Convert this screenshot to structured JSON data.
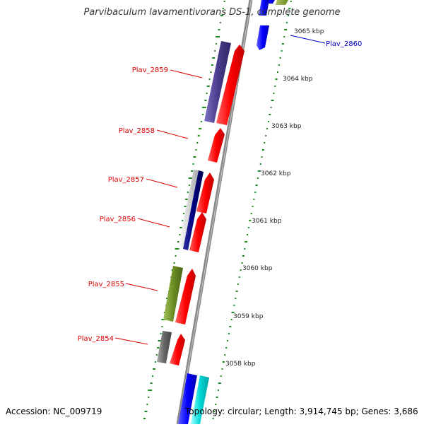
{
  "title": "Parvibaculum lavamentivorans DS-1, complete genome",
  "accession": "Accession: NC_009719",
  "summary": "Topology: circular; Length: 3,914,745 bp; Genes: 3,686",
  "ruler": [
    {
      "label": "3065 kbp"
    },
    {
      "label": "3064 kbp"
    },
    {
      "label": "3063 kbp"
    },
    {
      "label": "3062 kbp"
    },
    {
      "label": "3061 kbp"
    },
    {
      "label": "3060 kbp"
    },
    {
      "label": "3059 kbp"
    },
    {
      "label": "3058 kbp"
    }
  ],
  "gene_labels": [
    {
      "name": "Plav_2860",
      "color": "#0000cc"
    },
    {
      "name": "Plav_2859",
      "color": "#dd0000"
    },
    {
      "name": "Plav_2858",
      "color": "#dd0000"
    },
    {
      "name": "Plav_2857",
      "color": "#dd0000"
    },
    {
      "name": "Plav_2856",
      "color": "#dd0000"
    },
    {
      "name": "Plav_2855",
      "color": "#dd0000"
    },
    {
      "name": "Plav_2854",
      "color": "#dd0000"
    }
  ],
  "colors": {
    "backbone": "#888888",
    "gc_ticks": "#1a8a1a",
    "forward_cds": "#ff0000",
    "reverse_cds": "#0000ff"
  }
}
